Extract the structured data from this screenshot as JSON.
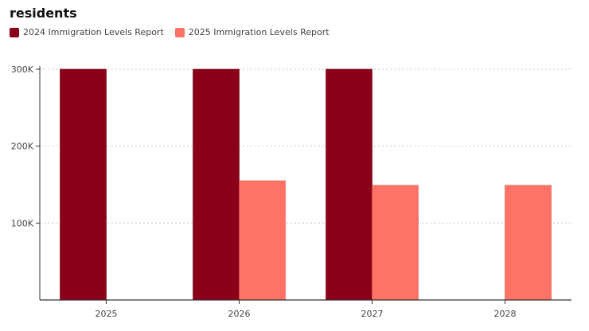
{
  "title_lines": [
    "residents"
  ],
  "colors": {
    "series_2024": "#8b0018",
    "series_2025": "#ff7366",
    "grid": "#c8c8c8",
    "axis": "#333333"
  },
  "chart_data": {
    "type": "bar",
    "categories": [
      "2025",
      "2026",
      "2027",
      "2028"
    ],
    "series": [
      {
        "name": "2024 Immigration Levels Report",
        "values": [
          305000,
          305000,
          305000,
          null
        ]
      },
      {
        "name": "2025 Immigration Levels Report",
        "values": [
          null,
          155000,
          149000,
          149000
        ]
      }
    ],
    "yticks": [
      {
        "value": 100000,
        "label": "100K"
      },
      {
        "value": 200000,
        "label": "200K"
      },
      {
        "value": 300000,
        "label": "300K"
      }
    ],
    "ylim": [
      0,
      300000
    ],
    "grid": true,
    "legend_position": "top-left"
  }
}
